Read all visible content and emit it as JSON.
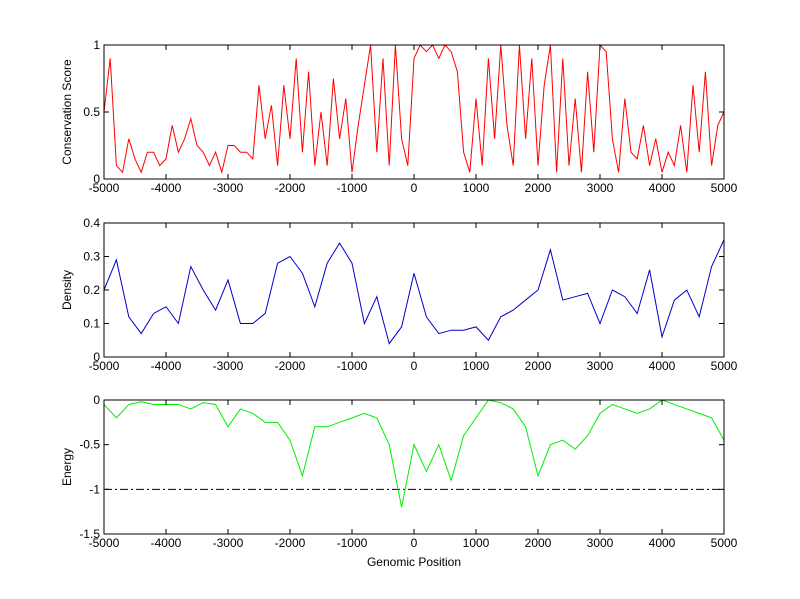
{
  "chart_data": [
    {
      "type": "line",
      "ylabel": "Conservation Score",
      "xlim": [
        -5000,
        5000
      ],
      "xticks": [
        -5000,
        -4000,
        -3000,
        -2000,
        -1000,
        0,
        1000,
        2000,
        3000,
        4000,
        5000
      ],
      "ylim": [
        0,
        1
      ],
      "yticks": [
        0,
        0.5,
        1
      ],
      "x": [
        -5000,
        -4900,
        -4800,
        -4700,
        -4600,
        -4500,
        -4400,
        -4300,
        -4200,
        -4100,
        -4000,
        -3900,
        -3800,
        -3700,
        -3600,
        -3500,
        -3400,
        -3300,
        -3200,
        -3100,
        -3000,
        -2900,
        -2800,
        -2700,
        -2600,
        -2500,
        -2400,
        -2300,
        -2200,
        -2100,
        -2000,
        -1900,
        -1800,
        -1700,
        -1600,
        -1500,
        -1400,
        -1300,
        -1200,
        -1100,
        -1000,
        -900,
        -800,
        -700,
        -600,
        -500,
        -400,
        -300,
        -200,
        -100,
        0,
        100,
        200,
        300,
        400,
        500,
        600,
        700,
        800,
        900,
        1000,
        1100,
        1200,
        1300,
        1400,
        1500,
        1600,
        1700,
        1800,
        1900,
        2000,
        2100,
        2200,
        2300,
        2400,
        2500,
        2600,
        2700,
        2800,
        2900,
        3000,
        3100,
        3200,
        3300,
        3400,
        3500,
        3600,
        3700,
        3800,
        3900,
        4000,
        4100,
        4200,
        4300,
        4400,
        4500,
        4600,
        4700,
        4800,
        4900,
        5000
      ],
      "series": [
        {
          "color": "#ff0000",
          "values": [
            0.5,
            0.9,
            0.1,
            0.05,
            0.3,
            0.15,
            0.05,
            0.2,
            0.2,
            0.1,
            0.15,
            0.4,
            0.2,
            0.3,
            0.45,
            0.25,
            0.2,
            0.1,
            0.2,
            0.05,
            0.25,
            0.25,
            0.2,
            0.2,
            0.15,
            0.7,
            0.3,
            0.55,
            0.1,
            0.7,
            0.3,
            0.9,
            0.2,
            0.8,
            0.1,
            0.5,
            0.1,
            0.75,
            0.3,
            0.6,
            0.05,
            0.4,
            0.7,
            1,
            0.2,
            0.9,
            0.1,
            1,
            0.3,
            0.1,
            0.9,
            1,
            0.95,
            1,
            0.9,
            1,
            0.95,
            0.8,
            0.2,
            0.05,
            0.6,
            0.1,
            0.9,
            0.3,
            1,
            0.4,
            0.1,
            1,
            0.3,
            0.9,
            0.1,
            0.7,
            1,
            0.05,
            0.9,
            0.1,
            0.6,
            0.05,
            0.8,
            0.2,
            1,
            0.95,
            0.3,
            0.05,
            0.6,
            0.2,
            0.15,
            0.4,
            0.1,
            0.3,
            0.05,
            0.2,
            0.1,
            0.4,
            0.05,
            0.7,
            0.2,
            0.8,
            0.1,
            0.4,
            0.5
          ]
        }
      ]
    },
    {
      "type": "line",
      "ylabel": "Density",
      "xlim": [
        -5000,
        5000
      ],
      "xticks": [
        -5000,
        -4000,
        -3000,
        -2000,
        -1000,
        0,
        1000,
        2000,
        3000,
        4000,
        5000
      ],
      "ylim": [
        0,
        0.4
      ],
      "yticks": [
        0,
        0.1,
        0.2,
        0.3,
        0.4
      ],
      "x": [
        -5000,
        -4800,
        -4600,
        -4400,
        -4200,
        -4000,
        -3800,
        -3600,
        -3400,
        -3200,
        -3000,
        -2800,
        -2600,
        -2400,
        -2200,
        -2000,
        -1800,
        -1600,
        -1400,
        -1200,
        -1000,
        -800,
        -600,
        -400,
        -200,
        0,
        200,
        400,
        600,
        800,
        1000,
        1200,
        1400,
        1600,
        1800,
        2000,
        2200,
        2400,
        2600,
        2800,
        3000,
        3200,
        3400,
        3600,
        3800,
        4000,
        4200,
        4400,
        4600,
        4800,
        5000
      ],
      "series": [
        {
          "color": "#0000cc",
          "values": [
            0.2,
            0.29,
            0.12,
            0.07,
            0.13,
            0.15,
            0.1,
            0.27,
            0.2,
            0.14,
            0.23,
            0.1,
            0.1,
            0.13,
            0.28,
            0.3,
            0.25,
            0.15,
            0.28,
            0.34,
            0.28,
            0.1,
            0.18,
            0.04,
            0.09,
            0.25,
            0.12,
            0.07,
            0.08,
            0.08,
            0.09,
            0.05,
            0.12,
            0.14,
            0.17,
            0.2,
            0.32,
            0.17,
            0.18,
            0.19,
            0.1,
            0.2,
            0.18,
            0.13,
            0.26,
            0.06,
            0.17,
            0.2,
            0.12,
            0.27,
            0.35
          ]
        }
      ]
    },
    {
      "type": "line",
      "ylabel": "Energy",
      "xlabel": "Genomic Position",
      "xlim": [
        -5000,
        5000
      ],
      "xticks": [
        -5000,
        -4000,
        -3000,
        -2000,
        -1000,
        0,
        1000,
        2000,
        3000,
        4000,
        5000
      ],
      "ylim": [
        -1.5,
        0
      ],
      "yticks": [
        -1.5,
        -1,
        -0.5,
        0
      ],
      "hline": {
        "value": -1,
        "color": "#000000",
        "style": "dash-dot"
      },
      "x": [
        -5000,
        -4800,
        -4600,
        -4400,
        -4200,
        -4000,
        -3800,
        -3600,
        -3400,
        -3200,
        -3000,
        -2800,
        -2600,
        -2400,
        -2200,
        -2000,
        -1800,
        -1600,
        -1400,
        -1200,
        -1000,
        -800,
        -600,
        -400,
        -200,
        0,
        200,
        400,
        600,
        800,
        1000,
        1200,
        1400,
        1600,
        1800,
        2000,
        2200,
        2400,
        2600,
        2800,
        3000,
        3200,
        3400,
        3600,
        3800,
        4000,
        4200,
        4400,
        4600,
        4800,
        5000
      ],
      "series": [
        {
          "color": "#00ee00",
          "values": [
            -0.05,
            -0.2,
            -0.05,
            -0.02,
            -0.05,
            -0.05,
            -0.05,
            -0.1,
            -0.03,
            -0.05,
            -0.3,
            -0.1,
            -0.15,
            -0.25,
            -0.25,
            -0.45,
            -0.85,
            -0.3,
            -0.3,
            -0.25,
            -0.2,
            -0.15,
            -0.2,
            -0.5,
            -1.2,
            -0.5,
            -0.8,
            -0.5,
            -0.9,
            -0.4,
            -0.2,
            0,
            -0.03,
            -0.1,
            -0.3,
            -0.85,
            -0.5,
            -0.45,
            -0.55,
            -0.4,
            -0.15,
            -0.05,
            -0.1,
            -0.15,
            -0.1,
            0,
            -0.05,
            -0.1,
            -0.15,
            -0.2,
            -0.45
          ]
        }
      ]
    }
  ]
}
